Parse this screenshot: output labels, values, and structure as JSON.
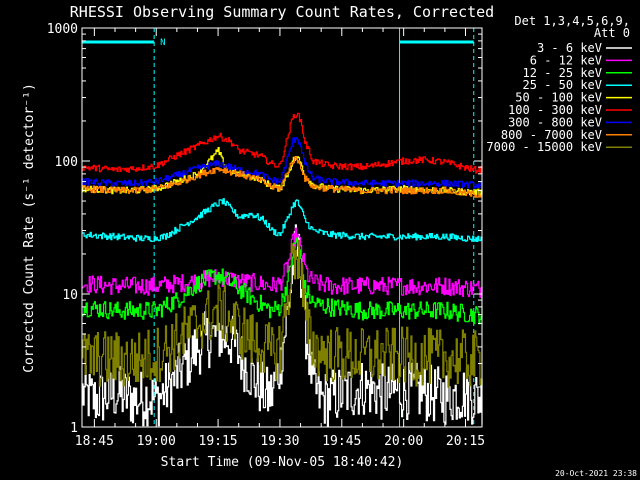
{
  "chart_data": {
    "type": "line",
    "title": "RHESSI Observing Summary Count Rates, Corrected",
    "xlabel": "Start Time (09-Nov-05 18:40:42)",
    "ylabel": "Corrected Count Rate (s⁻¹ detector⁻¹)",
    "x_ticks": [
      "18:45",
      "19:00",
      "19:15",
      "19:30",
      "19:45",
      "20:00",
      "20:15"
    ],
    "x_tick_minutes": [
      45,
      60,
      75,
      90,
      105,
      120,
      135
    ],
    "xlim_minutes": [
      42,
      139
    ],
    "y_ticks": [
      "1",
      "10",
      "100",
      "1000"
    ],
    "y_tick_values": [
      1,
      10,
      100,
      1000
    ],
    "ylim": [
      1,
      1000
    ],
    "y_scale": "log",
    "legend_header": [
      "Det 1,3,4,5,6,9,",
      "Att 0"
    ],
    "legend_position": "right",
    "footer_date": "20-Oct-2021 23:38",
    "attenuator_marker": "N",
    "intervals": [
      {
        "color": "#00ffff",
        "start_min": 42,
        "end_min": 59.5
      },
      {
        "color": "#00ffff",
        "start_min": 119,
        "end_min": 137
      }
    ],
    "vlines": [
      {
        "minute": 42,
        "style": "solid"
      },
      {
        "minute": 59.5,
        "style": "dashed"
      },
      {
        "minute": 119,
        "style": "solid"
      },
      {
        "minute": 137,
        "style": "dashed"
      }
    ],
    "series": [
      {
        "name": "3 - 6 keV",
        "color": "#ffffff",
        "x": [
          42,
          45,
          50,
          55,
          58,
          60,
          63,
          67,
          70,
          72,
          75,
          78,
          80,
          83,
          85,
          87,
          88,
          90,
          92,
          93,
          94,
          95,
          96,
          98,
          100,
          103,
          105,
          108,
          110,
          115,
          120,
          125,
          130,
          135,
          137
        ],
        "y": [
          1.8,
          1.6,
          1.8,
          1.6,
          1.7,
          1.6,
          2,
          3,
          4,
          4.5,
          5,
          4.5,
          3.5,
          2.5,
          2,
          1.7,
          1.8,
          3,
          8,
          15,
          24,
          15,
          6,
          2,
          1.6,
          1.7,
          1.8,
          1.9,
          2,
          1.8,
          1.9,
          1.8,
          1.7,
          1.8,
          1.7
        ]
      },
      {
        "name": "6 - 12 keV",
        "color": "#ff00ff",
        "x": [
          42,
          50,
          60,
          65,
          70,
          75,
          80,
          85,
          88,
          90,
          92,
          93,
          94,
          95,
          96,
          97,
          99,
          102,
          110,
          120,
          130,
          137
        ],
        "y": [
          12,
          11.5,
          11.5,
          12,
          12.5,
          13.5,
          12.5,
          12,
          11.5,
          12,
          17,
          24,
          28,
          22,
          16,
          13,
          12,
          11.5,
          11.5,
          11.5,
          11.5,
          11
        ]
      },
      {
        "name": "12 - 25 keV",
        "color": "#00ff00",
        "x": [
          42,
          50,
          60,
          65,
          70,
          75,
          80,
          85,
          88,
          90,
          92,
          93,
          94,
          95,
          96,
          98,
          102,
          110,
          120,
          130,
          137
        ],
        "y": [
          8,
          7.5,
          7.5,
          9,
          12,
          14,
          11,
          8.5,
          7.5,
          8,
          13,
          20,
          26,
          18,
          11,
          8.5,
          8,
          7.5,
          7.5,
          7.5,
          7
        ]
      },
      {
        "name": "25 - 50 keV",
        "color": "#00ffff",
        "x": [
          42,
          50,
          58,
          62,
          66,
          70,
          74,
          76,
          78,
          80,
          83,
          86,
          88,
          90,
          92,
          93,
          94,
          95,
          96,
          98,
          102,
          110,
          120,
          130,
          137
        ],
        "y": [
          28,
          27,
          26,
          27,
          32,
          38,
          46,
          50,
          44,
          38,
          40,
          36,
          30,
          28,
          38,
          46,
          50,
          44,
          36,
          30,
          28,
          27,
          27,
          27,
          26
        ]
      },
      {
        "name": "50 - 100 keV",
        "color": "#ffff00",
        "x": [
          42,
          50,
          55,
          60,
          65,
          70,
          74,
          75,
          76,
          78,
          80,
          85,
          88,
          90,
          92,
          93,
          94,
          95,
          96,
          98,
          102,
          110,
          120,
          130,
          137
        ],
        "y": [
          62,
          60,
          60,
          62,
          70,
          80,
          110,
          120,
          100,
          84,
          80,
          74,
          64,
          62,
          82,
          100,
          108,
          96,
          78,
          66,
          62,
          60,
          62,
          60,
          58
        ]
      },
      {
        "name": "100 - 300 keV",
        "color": "#ff0000",
        "x": [
          42,
          50,
          55,
          60,
          65,
          70,
          75,
          78,
          80,
          85,
          88,
          90,
          92,
          93,
          94,
          95,
          96,
          98,
          102,
          110,
          120,
          125,
          130,
          137
        ],
        "y": [
          90,
          86,
          88,
          92,
          110,
          130,
          155,
          140,
          120,
          110,
          95,
          92,
          160,
          210,
          230,
          200,
          140,
          100,
          92,
          90,
          100,
          102,
          98,
          86
        ]
      },
      {
        "name": "300 - 800 keV",
        "color": "#0000ff",
        "x": [
          42,
          50,
          55,
          60,
          65,
          70,
          75,
          80,
          85,
          88,
          90,
          92,
          93,
          94,
          95,
          96,
          98,
          102,
          110,
          120,
          130,
          137
        ],
        "y": [
          70,
          68,
          68,
          70,
          78,
          88,
          96,
          86,
          80,
          72,
          70,
          110,
          140,
          152,
          130,
          95,
          74,
          70,
          68,
          68,
          68,
          66
        ]
      },
      {
        "name": "800 - 7000 keV",
        "color": "#ff8000",
        "x": [
          42,
          50,
          55,
          60,
          65,
          70,
          75,
          80,
          85,
          88,
          90,
          92,
          93,
          94,
          95,
          96,
          98,
          102,
          110,
          120,
          130,
          137
        ],
        "y": [
          62,
          60,
          60,
          62,
          68,
          78,
          88,
          80,
          72,
          64,
          62,
          86,
          100,
          104,
          92,
          74,
          64,
          62,
          60,
          60,
          60,
          56
        ]
      },
      {
        "name": "7000 - 15000 keV",
        "color": "#808000",
        "x": [
          42,
          50,
          55,
          60,
          65,
          70,
          75,
          78,
          80,
          83,
          86,
          88,
          90,
          92,
          93,
          94,
          95,
          96,
          98,
          102,
          110,
          120,
          130,
          137
        ],
        "y": [
          3.3,
          3.2,
          3.2,
          3.5,
          4.5,
          6,
          7.5,
          6.5,
          5.5,
          4.5,
          4,
          3.5,
          4,
          10,
          18,
          22,
          15,
          6,
          4,
          3.5,
          3.4,
          3.4,
          3.3,
          3.2
        ]
      }
    ]
  }
}
